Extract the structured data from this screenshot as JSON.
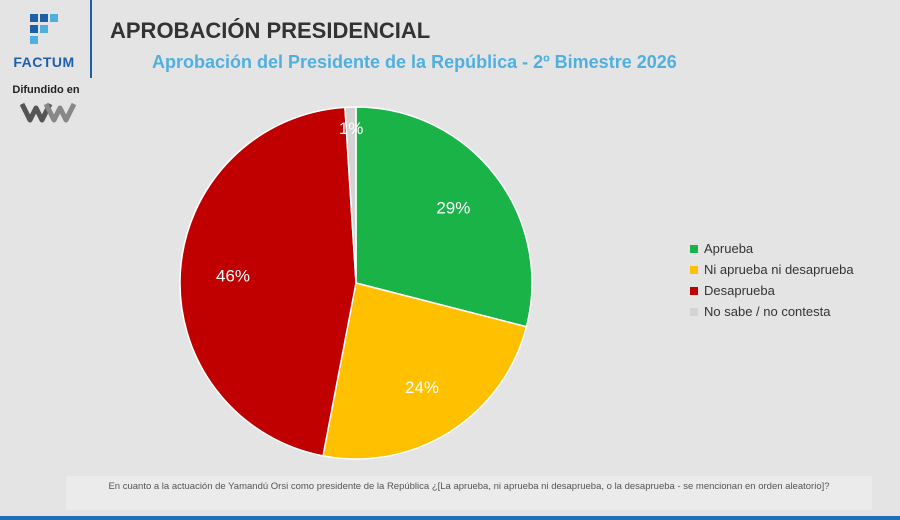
{
  "brand": {
    "name": "FACTUM",
    "broadcast_label": "Difundido en",
    "color": "#1f5fa8"
  },
  "header": {
    "title": "APROBACIÓN PRESIDENCIAL",
    "subtitle": "Aprobación del Presidente de la República - 2º Bimestre 2026"
  },
  "chart_data": {
    "type": "pie",
    "title": "APROBACIÓN PRESIDENCIAL",
    "subtitle": "Aprobación del Presidente de la República - 2º Bimestre 2026",
    "categories": [
      "Aprueba",
      "Ni aprueba ni desaprueba",
      "Desaprueba",
      "No sabe / no contesta"
    ],
    "values": [
      29,
      24,
      46,
      1
    ],
    "labels": [
      "29%",
      "24%",
      "46%",
      "1%"
    ],
    "colors": [
      "#1ab347",
      "#ffc000",
      "#c00000",
      "#d3d3d3"
    ],
    "start": "top, clockwise",
    "legend_position": "right"
  },
  "footer": {
    "question": "En cuanto a la actuación de Yamandú Orsi como presidente de la República ¿[La aprueba, ni aprueba ni desaprueba, o la desaprueba - se mencionan en orden aleatorio]?"
  }
}
